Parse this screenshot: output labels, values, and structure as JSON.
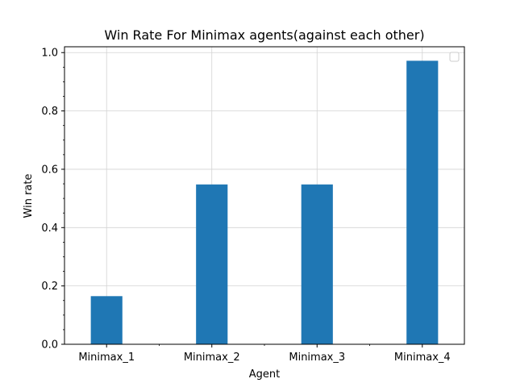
{
  "chart_data": {
    "type": "bar",
    "title": "Win Rate For Minimax agents(against each other)",
    "xlabel": "Agent",
    "ylabel": "Win rate",
    "categories": [
      "Minimax_1",
      "Minimax_2",
      "Minimax_3",
      "Minimax_4"
    ],
    "values": [
      0.165,
      0.548,
      0.548,
      0.972
    ],
    "ylim": [
      0,
      1.02
    ],
    "yticks": [
      0.0,
      0.2,
      0.4,
      0.6,
      0.8,
      1.0
    ],
    "ytick_labels": [
      "0.0",
      "0.2",
      "0.4",
      "0.6",
      "0.8",
      "1.0"
    ],
    "grid": true,
    "legend_position": "top-right",
    "bar_color": "#1f77b4",
    "grid_color": "#d3d3d3"
  }
}
